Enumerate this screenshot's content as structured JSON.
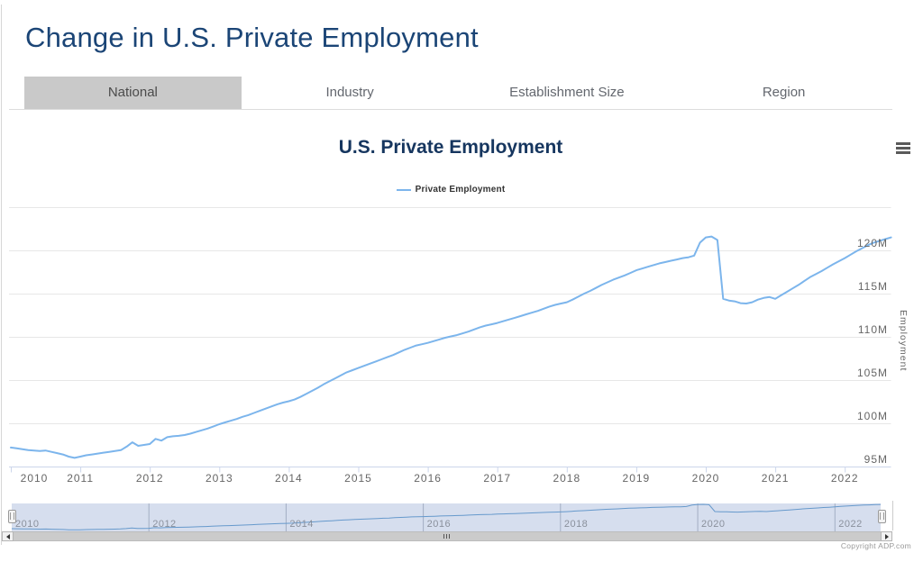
{
  "page": {
    "title": "Change in U.S. Private Employment"
  },
  "tabs": [
    {
      "label": "National",
      "active": true
    },
    {
      "label": "Industry",
      "active": false
    },
    {
      "label": "Establishment Size",
      "active": false
    },
    {
      "label": "Region",
      "active": false
    }
  ],
  "chart": {
    "title": "U.S. Private Employment",
    "legend": "Private Employment",
    "y_axis": {
      "title": "Employment",
      "labels": [
        "120M",
        "115M",
        "110M",
        "105M",
        "100M",
        "95M"
      ]
    },
    "x_axis": {
      "labels": [
        "2010",
        "2011",
        "2012",
        "2013",
        "2014",
        "2015",
        "2016",
        "2017",
        "2018",
        "2019",
        "2020",
        "2021",
        "2022"
      ]
    },
    "navigator": {
      "labels": [
        "2010",
        "2012",
        "2014",
        "2016",
        "2018",
        "2020",
        "2022"
      ]
    },
    "copyright": "Copyright ADP.com"
  },
  "icons": {
    "menu": "hamburger-menu",
    "scrollbar_left": "left-arrow",
    "scrollbar_right": "right-arrow",
    "navigator_handles": "drag-handle"
  },
  "colors": {
    "series_line": "#7cb5ec",
    "page_title_navy": "#1b4576",
    "chart_title_navy": "#16365f",
    "grid_line": "#e7e7e7",
    "axis_line": "#ccd6eb",
    "axis_label": "#666666",
    "active_tab_bg": "#c9c9c9",
    "navigator_mask": "rgba(102,133,194,0.27)",
    "navigator_line": "#6699cc",
    "scrollbar": "#cbcbcb"
  },
  "chart_data": {
    "type": "line",
    "title": "U.S. Private Employment",
    "series_name": "Private Employment",
    "xlabel": "",
    "ylabel": "Employment",
    "x_unit": "month",
    "x_start": "2010-01",
    "x_end": "2022-09",
    "ylim_millions": [
      95,
      125
    ],
    "yticks": [
      "95M",
      "100M",
      "105M",
      "110M",
      "115M",
      "120M"
    ],
    "grid": "horizontal",
    "legend_position": "top-center",
    "navigator": true,
    "values_millions_by_year": {
      "2010": [
        97.2,
        97.1,
        97.0,
        96.9,
        96.85,
        96.8,
        96.85,
        96.7,
        96.55,
        96.4,
        96.15,
        96.0
      ],
      "2011": [
        96.15,
        96.3,
        96.4,
        96.5,
        96.6,
        96.7,
        96.8,
        96.9,
        97.3,
        97.8,
        97.4,
        97.5
      ],
      "2012": [
        97.6,
        98.2,
        98.0,
        98.4,
        98.5,
        98.55,
        98.65,
        98.8,
        99.0,
        99.2,
        99.4,
        99.65
      ],
      "2013": [
        99.9,
        100.1,
        100.3,
        100.5,
        100.75,
        100.95,
        101.2,
        101.45,
        101.7,
        101.95,
        102.2,
        102.4
      ],
      "2014": [
        102.55,
        102.75,
        103.05,
        103.4,
        103.75,
        104.1,
        104.5,
        104.85,
        105.2,
        105.55,
        105.9,
        106.15
      ],
      "2015": [
        106.4,
        106.65,
        106.9,
        107.15,
        107.4,
        107.65,
        107.9,
        108.2,
        108.5,
        108.75,
        109.0,
        109.15
      ],
      "2016": [
        109.3,
        109.5,
        109.7,
        109.9,
        110.05,
        110.2,
        110.4,
        110.6,
        110.85,
        111.1,
        111.3,
        111.45
      ],
      "2017": [
        111.6,
        111.8,
        112.0,
        112.2,
        112.4,
        112.6,
        112.8,
        113.0,
        113.25,
        113.5,
        113.7,
        113.85
      ],
      "2018": [
        114.0,
        114.3,
        114.65,
        115.0,
        115.3,
        115.65,
        116.0,
        116.3,
        116.6,
        116.85,
        117.1,
        117.4
      ],
      "2019": [
        117.7,
        117.9,
        118.1,
        118.3,
        118.5,
        118.65,
        118.8,
        118.95,
        119.1,
        119.2,
        119.4,
        120.9
      ],
      "2020": [
        121.5,
        121.6,
        121.2,
        114.4,
        114.2,
        114.1,
        113.9,
        113.85,
        114.0,
        114.3,
        114.5,
        114.6
      ],
      "2021": [
        114.4,
        114.8,
        115.2,
        115.6,
        116.0,
        116.45,
        116.9,
        117.25,
        117.6,
        118.0,
        118.4,
        118.75
      ],
      "2022": [
        119.1,
        119.5,
        119.9,
        120.25,
        120.6,
        120.9,
        121.1,
        121.3,
        121.5
      ]
    }
  }
}
